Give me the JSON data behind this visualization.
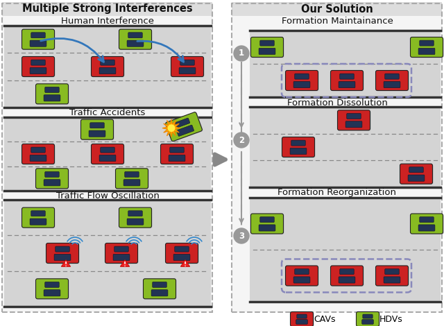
{
  "title_left": "Multiple Strong Interferences",
  "title_right": "Our Solution",
  "left_subtitles": [
    "Human Interference",
    "Traffic Accidents",
    "Traffic Flow Oscillation"
  ],
  "right_subtitles": [
    "Formation Maintainance",
    "Formation Dissolution",
    "Formation Reorganization"
  ],
  "step_labels": [
    "1",
    "2",
    "3"
  ],
  "legend_labels": [
    "CAVs",
    "HDVs"
  ],
  "bg_color": "#f5f5f5",
  "panel_bg": "#eeeeee",
  "road_color": "#d4d4d4",
  "dashed_border_color": "#aaaaaa",
  "cav_color": "#cc2222",
  "cav_body": "#dd3333",
  "hdv_color": "#88bb22",
  "hdv_body": "#99cc33",
  "arrow_color": "#3377bb",
  "main_arrow_color": "#888888",
  "circle_color": "#999999",
  "platoon_border_color": "#8888bb",
  "warning_color": "#ee3333",
  "explosion_color": "#ffaa00",
  "title_header_bg": "#e0e0e0"
}
